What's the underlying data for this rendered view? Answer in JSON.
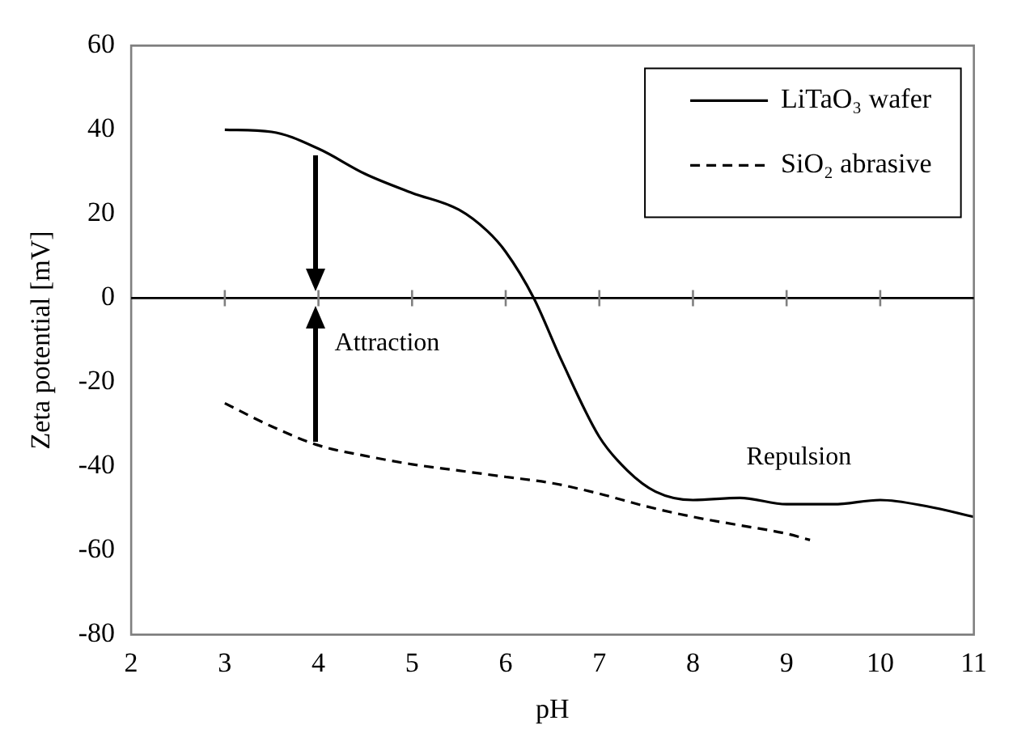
{
  "chart_data": {
    "type": "line",
    "xlabel": "pH",
    "ylabel": "Zeta potential [mV]",
    "xlim": [
      2,
      11
    ],
    "xticks": [
      2,
      3,
      4,
      5,
      6,
      7,
      8,
      9,
      10,
      11
    ],
    "ylim": [
      -80,
      60
    ],
    "yticks": [
      -80,
      -60,
      -40,
      -20,
      0,
      20,
      40,
      60
    ],
    "legend": "top right",
    "marker": "none",
    "ref_lines": [
      {
        "axis": "y",
        "value": 0,
        "color": "#000000"
      }
    ],
    "annotations": [
      {
        "text": "Attraction",
        "x": 4,
        "y": 0
      },
      "Repulsion"
    ],
    "series": [
      {
        "name": "LiTaO₃ wafer",
        "color": "#000000",
        "line_style": "solid",
        "x": [
          3,
          3.5,
          4,
          4.5,
          5,
          5.5,
          5.8,
          6,
          6.3,
          6.6,
          7,
          7.3,
          7.6,
          8,
          8.5,
          9,
          9.5,
          10,
          10.5,
          11
        ],
        "values": [
          40,
          39.5,
          35.5,
          29.5,
          25,
          21,
          16,
          11,
          0,
          -15,
          -33,
          -41,
          -46,
          -48,
          -47.5,
          -49,
          -49,
          -48,
          -49.5,
          -52
        ]
      },
      {
        "name": "SiO₂ abrasive",
        "color": "#000000",
        "line_style": "dashed",
        "x": [
          3,
          3.5,
          4,
          4.5,
          5,
          5.5,
          6,
          6.5,
          7,
          7.5,
          8,
          8.5,
          9,
          9.25
        ],
        "values": [
          -25,
          -30.5,
          -35,
          -37.5,
          -39.5,
          -41,
          -42.5,
          -44,
          -46.5,
          -49.5,
          -52,
          -54,
          -56,
          -57.5
        ]
      }
    ]
  }
}
